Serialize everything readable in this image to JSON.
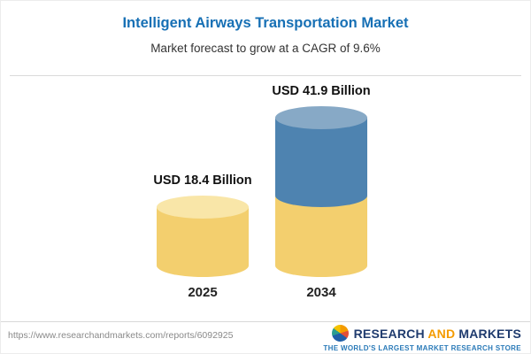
{
  "header": {
    "title": "Intelligent Airways Transportation Market",
    "subtitle": "Market forecast to grow at a CAGR of 9.6%"
  },
  "chart_data": {
    "type": "bar",
    "variant": "3d-cylinder",
    "title": "Intelligent Airways Transportation Market",
    "subtitle": "Market forecast to grow at a CAGR of 9.6%",
    "unit": "USD Billion",
    "cagr_percent": 9.6,
    "categories": [
      "2025",
      "2034"
    ],
    "values": [
      18.4,
      41.9
    ],
    "value_labels": [
      "USD 18.4 Billion",
      "USD 41.9 Billion"
    ],
    "bars": [
      {
        "category": "2025",
        "label": "USD 18.4 Billion",
        "total": 18.4,
        "segments": [
          {
            "color": "gold",
            "value": 18.4
          }
        ]
      },
      {
        "category": "2034",
        "label": "USD 41.9 Billion",
        "total": 41.9,
        "segments": [
          {
            "color": "gold",
            "value": 18.4
          },
          {
            "color": "blue",
            "value": 23.5
          }
        ]
      }
    ],
    "colors": {
      "gold": "#F3CF6E",
      "gold_light": "#F9E6A8",
      "blue": "#4E83B0",
      "blue_light": "#87A9C6"
    },
    "ylim": [
      0,
      45
    ],
    "grid": false,
    "legend": false
  },
  "footer": {
    "url": "https://www.researchandmarkets.com/reports/6092925",
    "logo": {
      "word_research": "RESEARCH",
      "word_and": "AND",
      "word_markets": "MARKETS",
      "tagline": "THE WORLD'S LARGEST MARKET RESEARCH STORE",
      "colors": {
        "navy": "#1F3B6E",
        "orange": "#F49B00",
        "tagline_blue": "#2A7AB8"
      }
    }
  }
}
